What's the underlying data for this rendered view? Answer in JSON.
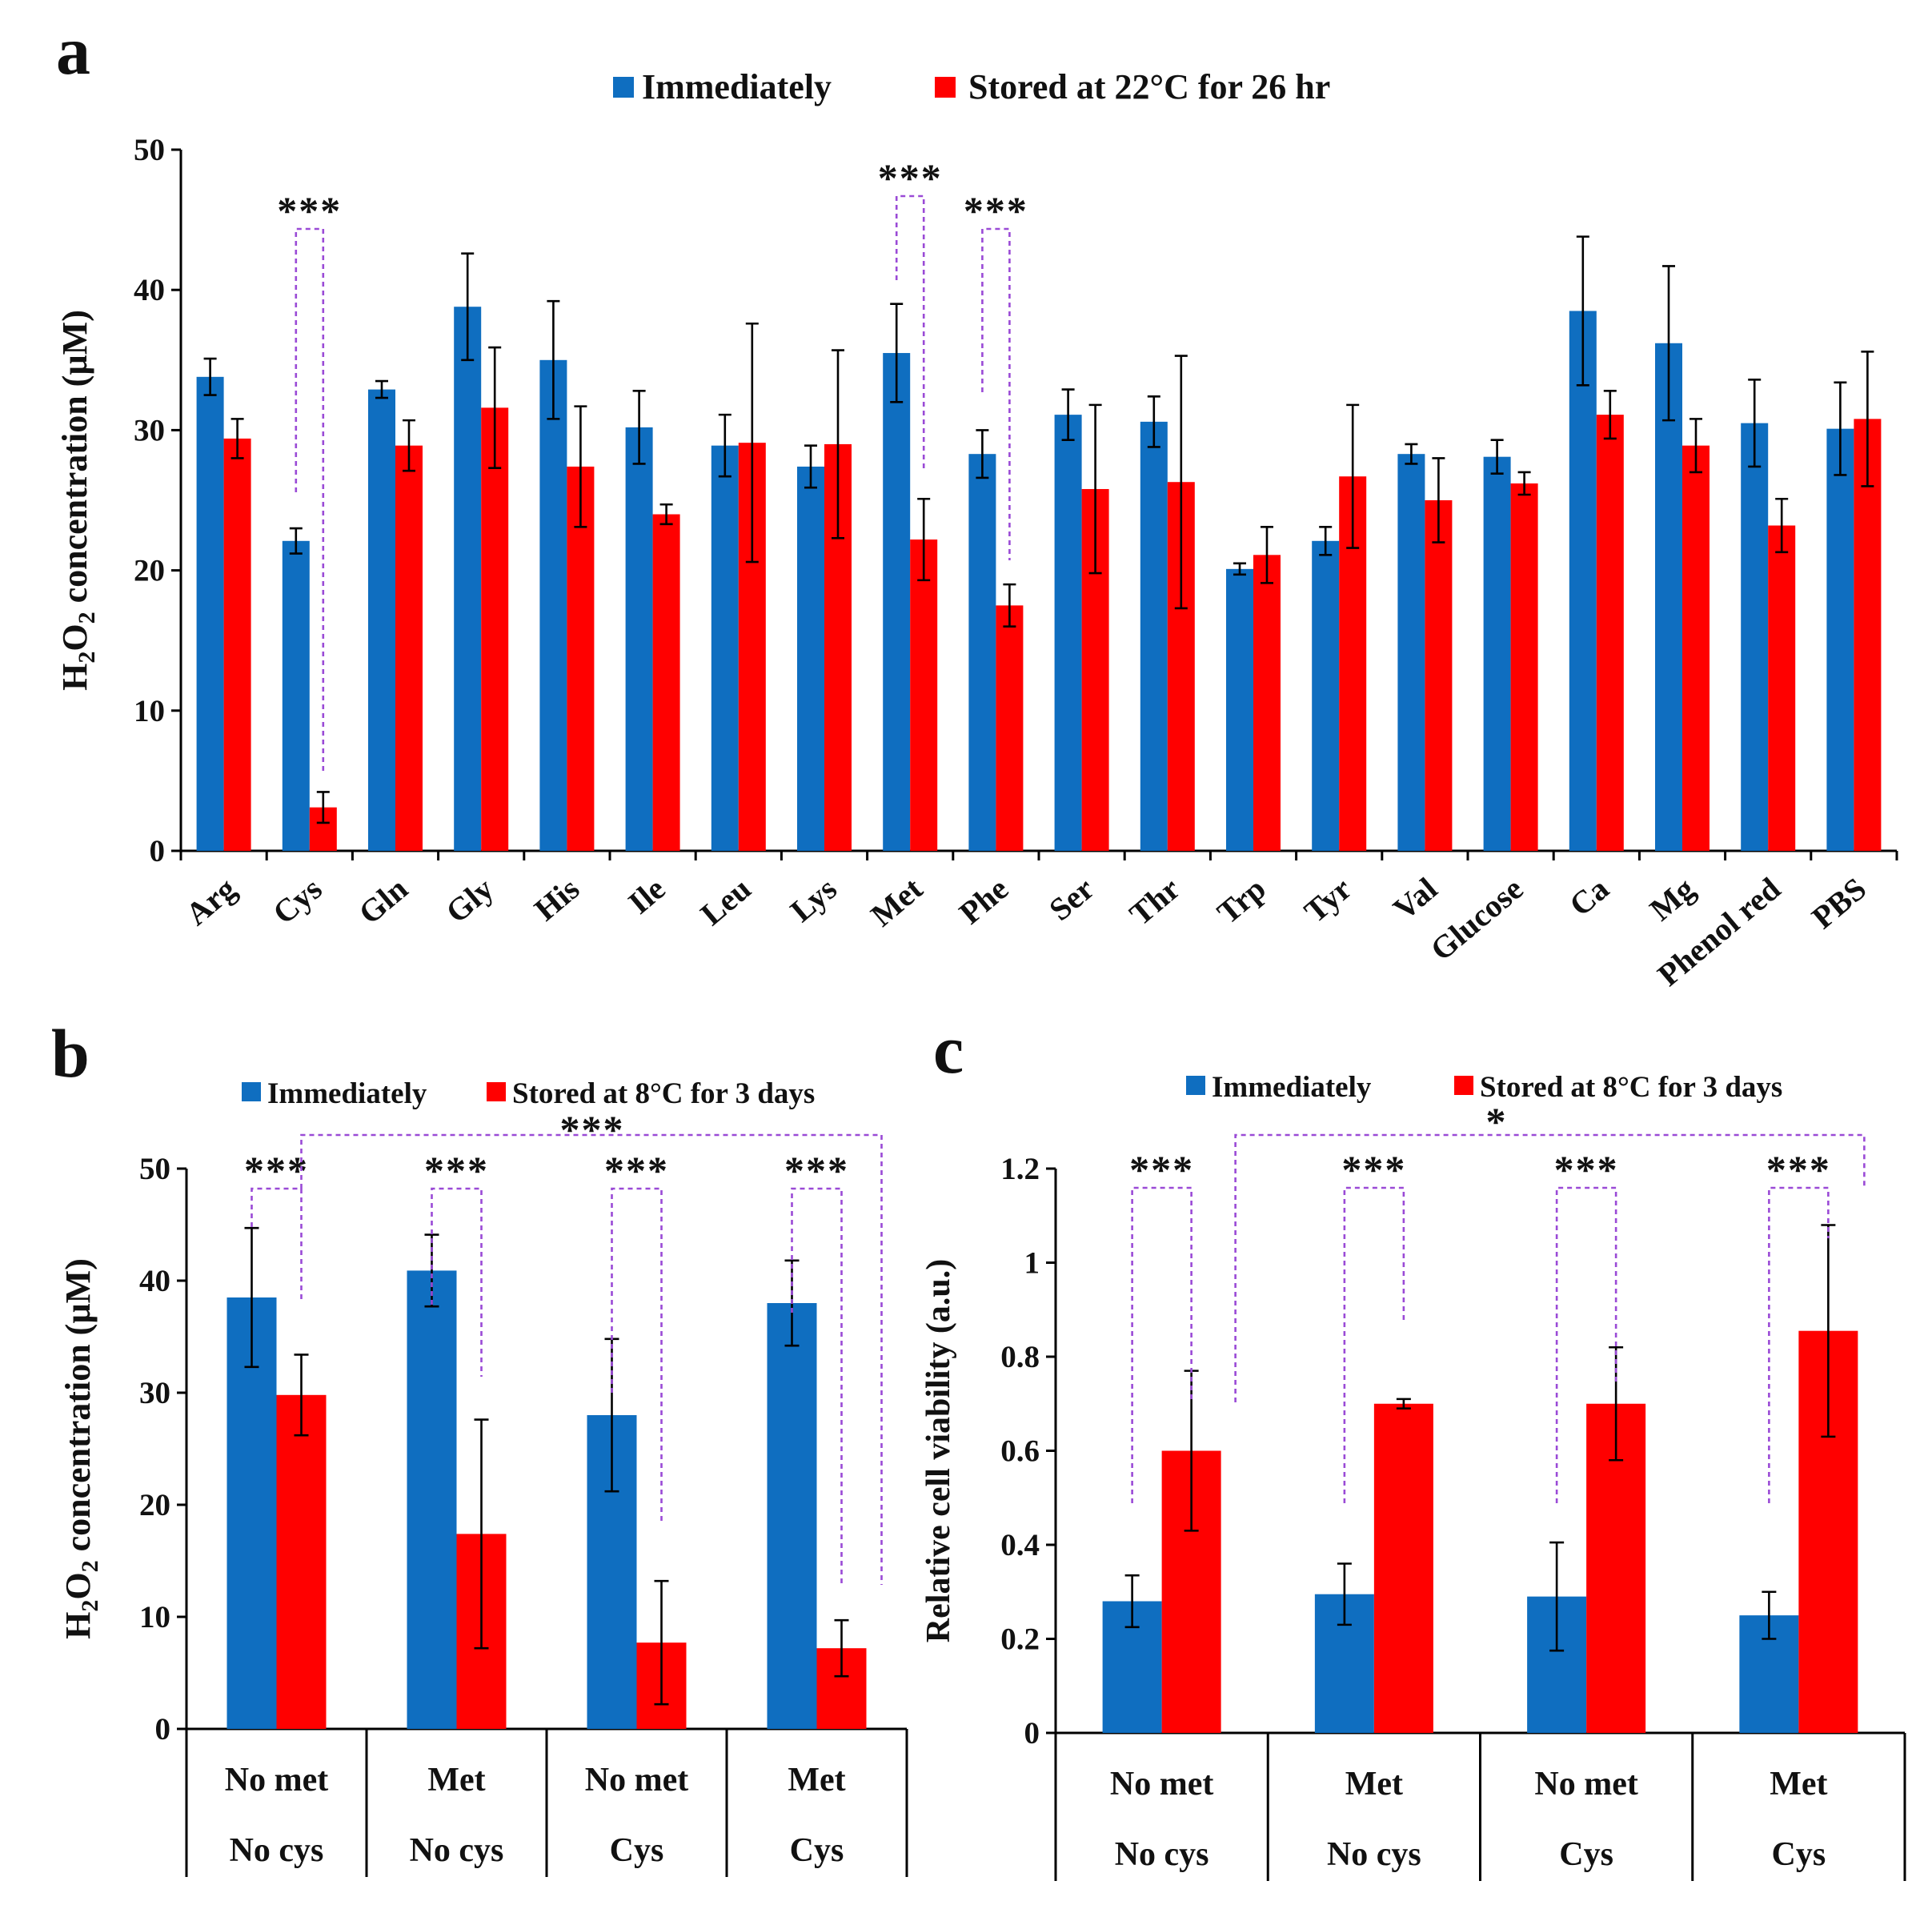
{
  "colors": {
    "immediately": "#0f6ec0",
    "stored": "#ff0000",
    "bracket": "#9a4ad6"
  },
  "chart_data": [
    {
      "panel": "a",
      "type": "bar",
      "legend": [
        "Immediately",
        "Stored at 22°C for  26 hr"
      ],
      "ylabel": "H2O2 concentration (µM)",
      "ylim": [
        0,
        50
      ],
      "yticks": [
        0,
        10,
        20,
        30,
        40,
        50
      ],
      "categories": [
        "Arg",
        "Cys",
        "Gln",
        "Gly",
        "His",
        "Ile",
        "Leu",
        "Lys",
        "Met",
        "Phe",
        "Ser",
        "Thr",
        "Trp",
        "Tyr",
        "Val",
        "Glucose",
        "Ca",
        "Mg",
        "Phenol red",
        "PBS"
      ],
      "series": [
        {
          "name": "Immediately",
          "values": [
            33.8,
            22.1,
            32.9,
            38.8,
            35.0,
            30.2,
            28.9,
            27.4,
            35.5,
            28.3,
            31.1,
            30.6,
            20.1,
            22.1,
            28.3,
            28.1,
            38.5,
            36.2,
            30.5,
            30.1
          ],
          "errors": [
            1.3,
            0.9,
            0.6,
            3.8,
            4.2,
            2.6,
            2.2,
            1.5,
            3.5,
            1.7,
            1.8,
            1.8,
            0.4,
            1.0,
            0.7,
            1.2,
            5.3,
            5.5,
            3.1,
            3.3
          ]
        },
        {
          "name": "Stored at 22°C for  26 hr",
          "values": [
            29.4,
            3.1,
            28.9,
            31.6,
            27.4,
            24.0,
            29.1,
            29.0,
            22.2,
            17.5,
            25.8,
            26.3,
            21.1,
            26.7,
            25.0,
            26.2,
            31.1,
            28.9,
            23.2,
            30.8
          ],
          "errors": [
            1.4,
            1.1,
            1.8,
            4.3,
            4.3,
            0.7,
            8.5,
            6.7,
            2.9,
            1.5,
            6.0,
            9.0,
            2.0,
            5.1,
            3.0,
            0.8,
            1.7,
            1.9,
            1.9,
            4.8
          ]
        }
      ],
      "significance": [
        {
          "label": "***",
          "category": "Cys"
        },
        {
          "label": "***",
          "category": "Met"
        },
        {
          "label": "***",
          "category": "Phe"
        }
      ]
    },
    {
      "panel": "b",
      "type": "bar",
      "legend": [
        "Immediately",
        "Stored at 8°C for 3 days"
      ],
      "ylabel": "H2O2 concentration (µM)",
      "ylim": [
        0,
        50
      ],
      "yticks": [
        0,
        10,
        20,
        30,
        40,
        50
      ],
      "groups": [
        {
          "top": "No met",
          "bottom": "No cys"
        },
        {
          "top": "Met",
          "bottom": "No cys"
        },
        {
          "top": "No met",
          "bottom": "Cys"
        },
        {
          "top": "Met",
          "bottom": "Cys"
        }
      ],
      "series": [
        {
          "name": "Immediately",
          "values": [
            38.5,
            40.9,
            28.0,
            38.0
          ],
          "errors": [
            6.2,
            3.2,
            6.8,
            3.8
          ]
        },
        {
          "name": "Stored at 8°C for 3 days",
          "values": [
            29.8,
            17.4,
            7.7,
            7.2
          ],
          "errors": [
            3.6,
            10.2,
            5.5,
            2.5
          ]
        }
      ],
      "significance": [
        {
          "label": "***",
          "group": "No met / No cys"
        },
        {
          "label": "***",
          "group": "Met / No cys"
        },
        {
          "label": "***",
          "group": "No met / Cys"
        },
        {
          "label": "***",
          "group": "Met / Cys"
        },
        {
          "label": "***",
          "between": "No met No cys stored vs Met Cys stored"
        }
      ]
    },
    {
      "panel": "c",
      "type": "bar",
      "legend": [
        "Immediately",
        "Stored at 8°C for 3 days"
      ],
      "ylabel": "Relative cell viability (a.u.)",
      "ylim": [
        0,
        1.2
      ],
      "yticks": [
        0,
        0.2,
        0.4,
        0.6,
        0.8,
        1,
        1.2
      ],
      "ytick_labels": [
        "0",
        "0.2",
        "0.4",
        "0.6",
        "0.8",
        "1",
        "1.2"
      ],
      "groups": [
        {
          "top": "No met",
          "bottom": "No cys"
        },
        {
          "top": "Met",
          "bottom": "No cys"
        },
        {
          "top": "No met",
          "bottom": "Cys"
        },
        {
          "top": "Met",
          "bottom": "Cys"
        }
      ],
      "series": [
        {
          "name": "Immediately",
          "values": [
            0.28,
            0.295,
            0.29,
            0.25
          ],
          "errors": [
            0.055,
            0.065,
            0.115,
            0.05
          ]
        },
        {
          "name": "Stored at 8°C for 3 days",
          "values": [
            0.6,
            0.7,
            0.7,
            0.855
          ],
          "errors": [
            0.17,
            0.01,
            0.12,
            0.225
          ]
        }
      ],
      "significance": [
        {
          "label": "***",
          "group": "No met / No cys"
        },
        {
          "label": "***",
          "group": "Met / No cys"
        },
        {
          "label": "***",
          "group": "No met / Cys"
        },
        {
          "label": "***",
          "group": "Met / Cys"
        },
        {
          "label": "*",
          "between": "No met No cys stored vs Met Cys stored"
        }
      ]
    }
  ]
}
